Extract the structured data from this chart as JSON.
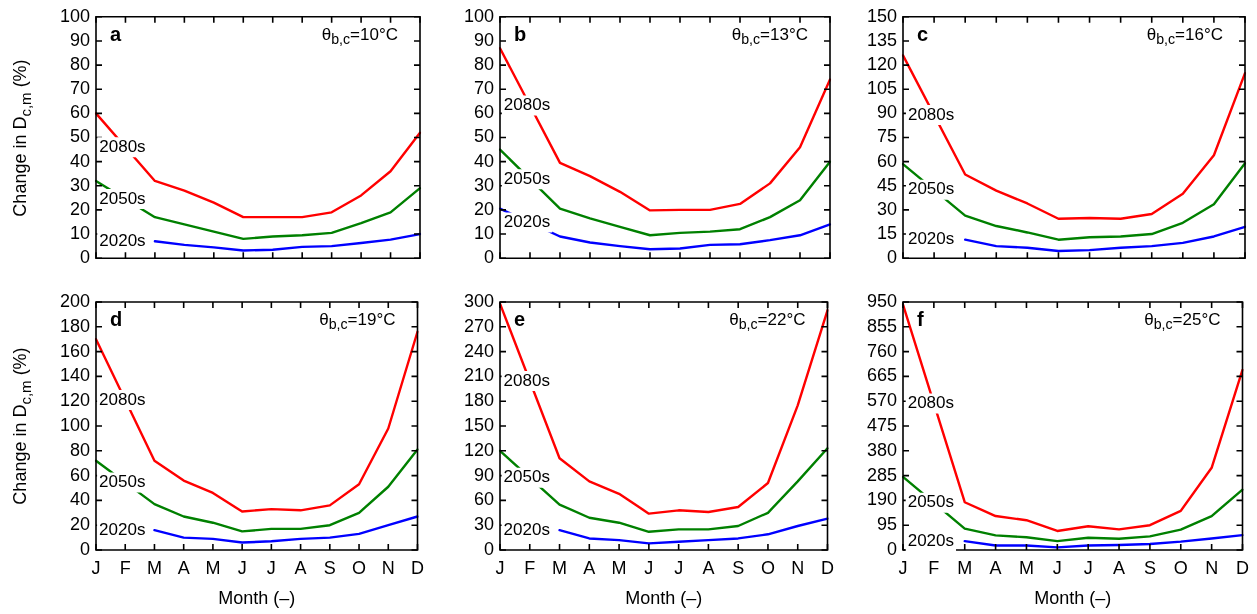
{
  "chart_data": [
    {
      "type": "line",
      "title": "a",
      "annotations": [
        "θ$_{b,c}$=10°C"
      ],
      "ylabel": "Change in D$_{c,m}$ (%)",
      "tick_labels": "y",
      "categories": [
        null,
        null,
        null,
        null,
        null,
        null,
        null,
        null,
        null,
        null,
        null,
        null
      ],
      "ylim": [
        0,
        100
      ],
      "yticks": [
        0,
        10,
        20,
        30,
        40,
        50,
        60,
        70,
        80,
        90,
        100
      ],
      "series": [
        {
          "name": "2080s",
          "color": "#ff0000",
          "values": [
            60,
            null,
            32,
            28,
            23,
            17,
            17,
            17,
            19,
            26,
            36,
            52
          ]
        },
        {
          "name": "2050s",
          "color": "#008000",
          "values": [
            32,
            null,
            17,
            14,
            11,
            8,
            9,
            9.5,
            10.5,
            14.5,
            19,
            29
          ]
        },
        {
          "name": "2020s",
          "color": "#0000ff",
          "values": [
            null,
            null,
            7,
            5.5,
            4.5,
            3.2,
            3.5,
            4.7,
            5,
            6.3,
            7.7,
            10
          ]
        }
      ]
    },
    {
      "type": "line",
      "title": "b",
      "annotations": [
        "θ$_{b,c}$=13°C"
      ],
      "tick_labels": "y",
      "categories": [
        null,
        null,
        null,
        null,
        null,
        null,
        null,
        null,
        null,
        null,
        null,
        null
      ],
      "ylim": [
        0,
        100
      ],
      "yticks": [
        0,
        10,
        20,
        30,
        40,
        50,
        60,
        70,
        80,
        90,
        100
      ],
      "series": [
        {
          "name": "2080s",
          "color": "#ff0000",
          "values": [
            87,
            null,
            39.5,
            34,
            27.5,
            19.8,
            20,
            20,
            22.5,
            31,
            46,
            74
          ]
        },
        {
          "name": "2050s",
          "color": "#008000",
          "values": [
            45,
            null,
            20.5,
            16.5,
            13,
            9.5,
            10.5,
            11,
            12,
            17,
            24,
            40
          ]
        },
        {
          "name": "2020s",
          "color": "#0000ff",
          "values": [
            20.5,
            null,
            9,
            6.5,
            5,
            3.7,
            4,
            5.5,
            5.8,
            7.5,
            9.5,
            14
          ]
        }
      ]
    },
    {
      "type": "line",
      "title": "c",
      "annotations": [
        "θ$_{b,c}$=16°C"
      ],
      "tick_labels": "y",
      "categories": [
        null,
        null,
        null,
        null,
        null,
        null,
        null,
        null,
        null,
        null,
        null,
        null
      ],
      "ylim": [
        0,
        150
      ],
      "yticks": [
        0,
        15,
        30,
        45,
        60,
        75,
        90,
        105,
        120,
        135,
        150
      ],
      "series": [
        {
          "name": "2080s",
          "color": "#ff0000",
          "values": [
            126,
            null,
            52,
            42,
            34,
            24.5,
            25,
            24.5,
            27.5,
            40,
            64,
            115
          ]
        },
        {
          "name": "2050s",
          "color": "#008000",
          "values": [
            58.5,
            null,
            26.5,
            20,
            16,
            11.5,
            13,
            13.5,
            15,
            22,
            33.5,
            59
          ]
        },
        {
          "name": "2020s",
          "color": "#0000ff",
          "values": [
            null,
            null,
            11.5,
            7.5,
            6.5,
            4.5,
            5,
            6.5,
            7.5,
            9.5,
            13.5,
            19.5
          ]
        }
      ]
    },
    {
      "type": "line",
      "title": "d",
      "annotations": [
        "θ$_{b,c}$=19°C"
      ],
      "ylabel": "Change in D$_{c,m}$ (%)",
      "xlabel": "Month (–)",
      "categories": [
        "J",
        "F",
        "M",
        "A",
        "M",
        "J",
        "J",
        "A",
        "S",
        "O",
        "N",
        "D"
      ],
      "ylim": [
        0,
        200
      ],
      "yticks": [
        0,
        20,
        40,
        60,
        80,
        100,
        120,
        140,
        160,
        180,
        200
      ],
      "series": [
        {
          "name": "2080s",
          "color": "#ff0000",
          "values": [
            170,
            null,
            72,
            56,
            46,
            31,
            33,
            32,
            36,
            53,
            98,
            176
          ]
        },
        {
          "name": "2050s",
          "color": "#008000",
          "values": [
            72,
            null,
            37,
            27,
            22,
            15,
            17,
            17,
            20,
            30,
            51,
            81
          ]
        },
        {
          "name": "2020s",
          "color": "#0000ff",
          "values": [
            null,
            null,
            16,
            10,
            9,
            6,
            7,
            9,
            10,
            13,
            20,
            27
          ]
        }
      ]
    },
    {
      "type": "line",
      "title": "e",
      "annotations": [
        "θ$_{b,c}$=22°C"
      ],
      "xlabel": "Month (–)",
      "categories": [
        "J",
        "F",
        "M",
        "A",
        "M",
        "J",
        "J",
        "A",
        "S",
        "O",
        "N",
        "D"
      ],
      "ylim": [
        0,
        300
      ],
      "yticks": [
        0,
        30,
        60,
        90,
        120,
        150,
        180,
        210,
        240,
        270,
        300
      ],
      "series": [
        {
          "name": "2080s",
          "color": "#ff0000",
          "values": [
            298,
            null,
            111,
            83,
            68,
            44,
            48,
            46,
            52,
            81,
            175,
            290
          ]
        },
        {
          "name": "2050s",
          "color": "#008000",
          "values": [
            120,
            null,
            55,
            39,
            33,
            22,
            25,
            25,
            29,
            45,
            83,
            123
          ]
        },
        {
          "name": "2020s",
          "color": "#0000ff",
          "values": [
            null,
            null,
            24,
            14,
            12,
            8,
            10,
            12,
            14,
            19,
            29,
            38
          ]
        }
      ]
    },
    {
      "type": "line",
      "title": "f",
      "annotations": [
        "θ$_{b,c}$=25°C"
      ],
      "xlabel": "Month (–)",
      "categories": [
        "J",
        "F",
        "M",
        "A",
        "M",
        "J",
        "J",
        "A",
        "S",
        "O",
        "N",
        "D"
      ],
      "ylim": [
        0,
        950
      ],
      "yticks": [
        0,
        95,
        190,
        285,
        380,
        475,
        570,
        665,
        760,
        855,
        950
      ],
      "series": [
        {
          "name": "2080s",
          "color": "#ff0000",
          "values": [
            940,
            null,
            183,
            130,
            114,
            73,
            91,
            79,
            95,
            150,
            315,
            690
          ]
        },
        {
          "name": "2050s",
          "color": "#008000",
          "values": [
            280,
            null,
            82,
            56,
            49,
            34,
            47,
            43,
            52,
            78,
            130,
            231
          ]
        },
        {
          "name": "2020s",
          "color": "#0000ff",
          "values": [
            null,
            null,
            34,
            17,
            17,
            10,
            17,
            19,
            23,
            32,
            44,
            57
          ]
        }
      ]
    }
  ]
}
